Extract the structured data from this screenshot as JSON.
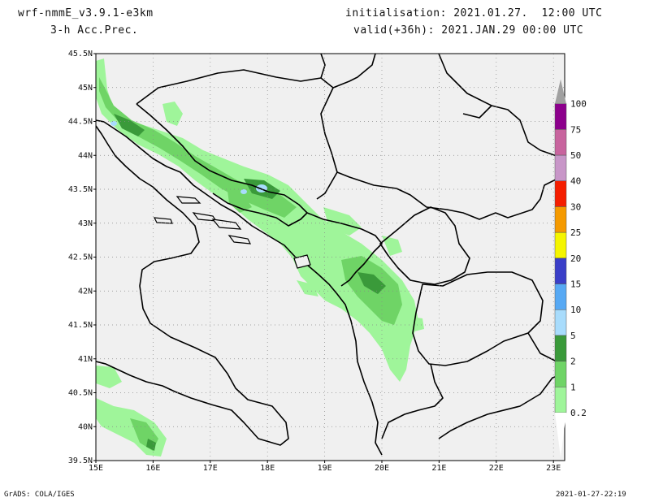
{
  "header": {
    "model": "wrf-nmmE_v3.9.1-e3km",
    "field": "3-h Acc.Prec.",
    "init": "initialisation: 2021.01.27.  12:00 UTC",
    "valid": "valid(+36h): 2021.JAN.29 00:00 UTC"
  },
  "footer": {
    "credit": "GrADS: COLA/IGES",
    "timestamp": "2021-01-27-22:19"
  },
  "axes": {
    "lat_labels": [
      "45.5N",
      "45N",
      "44.5N",
      "44N",
      "43.5N",
      "43N",
      "42.5N",
      "42N",
      "41.5N",
      "41N",
      "40.5N",
      "40N",
      "39.5N"
    ],
    "lon_labels": [
      "15E",
      "16E",
      "17E",
      "18E",
      "19E",
      "20E",
      "21E",
      "22E",
      "23E"
    ]
  },
  "legend": {
    "labels": [
      "0.2",
      "1",
      "2",
      "5",
      "10",
      "15",
      "20",
      "25",
      "30",
      "40",
      "50",
      "75",
      "100"
    ],
    "colors": [
      "#9ff59a",
      "#6fd466",
      "#3a9a3a",
      "#a8dcfc",
      "#57a9f4",
      "#3a3ec8",
      "#f5f500",
      "#f59a00",
      "#f51e00",
      "#c896c8",
      "#c8649e",
      "#8c008c"
    ],
    "over_color": "#a0a0a0"
  },
  "colors": {
    "land": "#f0f0f0",
    "border": "#000000"
  }
}
